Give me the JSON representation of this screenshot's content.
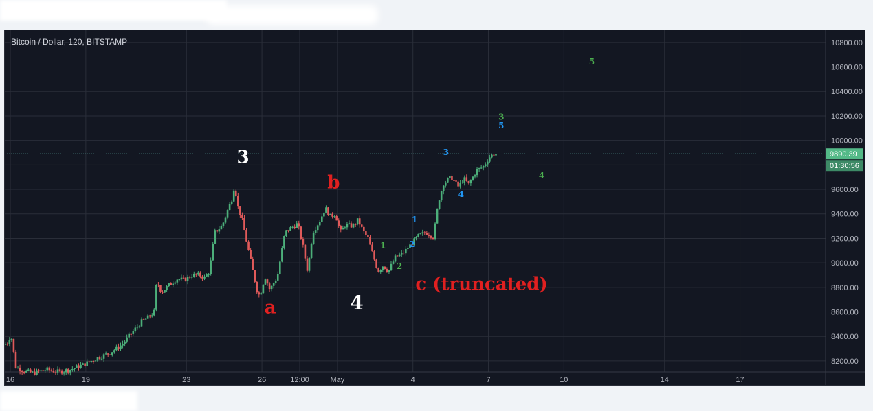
{
  "chart_data": {
    "type": "candlestick",
    "title": "Bitcoin / Dollar, 120, BITSTAMP",
    "y_ticks": [
      "10800.00",
      "10600.00",
      "10400.00",
      "10200.00",
      "10000.00",
      "9800.00",
      "9600.00",
      "9400.00",
      "9200.00",
      "9000.00",
      "8800.00",
      "8600.00",
      "8400.00",
      "8200.00"
    ],
    "y_tick_values": [
      10800,
      10600,
      10400,
      10200,
      10000,
      9800,
      9600,
      9400,
      9200,
      9000,
      8800,
      8600,
      8400,
      8200
    ],
    "ylim": [
      8110,
      10900
    ],
    "x_ticks": [
      "16",
      "19",
      "23",
      "26",
      "12:00",
      "May",
      "4",
      "7",
      "10",
      "14",
      "17"
    ],
    "x_tick_days": [
      16,
      19,
      23,
      26,
      27.5,
      29,
      32,
      35,
      38,
      42,
      45
    ],
    "xlim": [
      15.78,
      48.4
    ],
    "grid": true,
    "current_price": "9890.39",
    "current_price_value": 9890.39,
    "countdown": "01:30:56",
    "colors": {
      "up": "#4caf7a",
      "down": "#e05a5a",
      "background": "#131722",
      "grid": "#2a2e39",
      "price_line": "#5fb3a7"
    },
    "price_path": [
      [
        15.8,
        8330
      ],
      [
        16.0,
        8350
      ],
      [
        16.1,
        8430
      ],
      [
        16.3,
        8150
      ],
      [
        16.6,
        8120
      ],
      [
        17.0,
        8100
      ],
      [
        17.5,
        8130
      ],
      [
        18.0,
        8110
      ],
      [
        18.5,
        8130
      ],
      [
        19.0,
        8170
      ],
      [
        19.5,
        8220
      ],
      [
        20.0,
        8260
      ],
      [
        20.5,
        8330
      ],
      [
        20.8,
        8400
      ],
      [
        21.0,
        8450
      ],
      [
        21.3,
        8520
      ],
      [
        21.6,
        8560
      ],
      [
        21.8,
        8600
      ],
      [
        21.9,
        8850
      ],
      [
        22.1,
        8760
      ],
      [
        22.4,
        8820
      ],
      [
        22.7,
        8870
      ],
      [
        23.0,
        8860
      ],
      [
        23.3,
        8900
      ],
      [
        23.6,
        8900
      ],
      [
        23.8,
        8880
      ],
      [
        24.0,
        8930
      ],
      [
        24.2,
        9250
      ],
      [
        24.5,
        9300
      ],
      [
        24.7,
        9420
      ],
      [
        24.9,
        9530
      ],
      [
        25.0,
        9650
      ],
      [
        25.1,
        9480
      ],
      [
        25.3,
        9350
      ],
      [
        25.5,
        9150
      ],
      [
        25.7,
        8950
      ],
      [
        25.9,
        8760
      ],
      [
        26.0,
        8730
      ],
      [
        26.2,
        8890
      ],
      [
        26.4,
        8780
      ],
      [
        26.7,
        8890
      ],
      [
        27.0,
        9250
      ],
      [
        27.2,
        9280
      ],
      [
        27.5,
        9320
      ],
      [
        27.7,
        9150
      ],
      [
        27.9,
        8930
      ],
      [
        28.1,
        9250
      ],
      [
        28.4,
        9350
      ],
      [
        28.6,
        9450
      ],
      [
        28.8,
        9380
      ],
      [
        29.0,
        9400
      ],
      [
        29.2,
        9250
      ],
      [
        29.4,
        9310
      ],
      [
        29.7,
        9300
      ],
      [
        29.9,
        9350
      ],
      [
        30.1,
        9260
      ],
      [
        30.3,
        9200
      ],
      [
        30.5,
        9060
      ],
      [
        30.7,
        8930
      ],
      [
        30.9,
        8980
      ],
      [
        31.1,
        8930
      ],
      [
        31.4,
        9050
      ],
      [
        31.7,
        9080
      ],
      [
        32.0,
        9150
      ],
      [
        32.3,
        9220
      ],
      [
        32.6,
        9250
      ],
      [
        32.9,
        9210
      ],
      [
        33.1,
        9500
      ],
      [
        33.3,
        9650
      ],
      [
        33.6,
        9700
      ],
      [
        33.9,
        9620
      ],
      [
        34.1,
        9690
      ],
      [
        34.3,
        9640
      ],
      [
        34.6,
        9750
      ],
      [
        34.9,
        9790
      ],
      [
        35.1,
        9860
      ],
      [
        35.3,
        9890
      ]
    ],
    "annotations": [
      {
        "text": "3",
        "day": 25.0,
        "price": 9815,
        "color": "#ffffff",
        "size": 26
      },
      {
        "text": "a",
        "day": 26.1,
        "price": 8590,
        "color": "#e02020",
        "size": 26
      },
      {
        "text": "b",
        "day": 28.6,
        "price": 9610,
        "color": "#e02020",
        "size": 26
      },
      {
        "text": "c (truncated)",
        "day": 32.1,
        "price": 8780,
        "color": "#e02020",
        "size": 26
      },
      {
        "text": "4",
        "day": 29.5,
        "price": 8620,
        "color": "#ffffff",
        "size": 28
      },
      {
        "text": "1",
        "day": 30.7,
        "price": 9120,
        "color": "#4caf50",
        "size": 12
      },
      {
        "text": "2",
        "day": 31.35,
        "price": 8950,
        "color": "#4caf50",
        "size": 12
      },
      {
        "text": "1",
        "day": 31.95,
        "price": 9330,
        "color": "#2196f3",
        "size": 12
      },
      {
        "text": "2",
        "day": 31.85,
        "price": 9130,
        "color": "#2196f3",
        "size": 12
      },
      {
        "text": "3",
        "day": 33.2,
        "price": 9880,
        "color": "#2196f3",
        "size": 12
      },
      {
        "text": "4",
        "day": 33.8,
        "price": 9540,
        "color": "#2196f3",
        "size": 12
      },
      {
        "text": "3",
        "day": 35.4,
        "price": 10170,
        "color": "#4caf50",
        "size": 12
      },
      {
        "text": "5",
        "day": 35.4,
        "price": 10100,
        "color": "#2196f3",
        "size": 12
      },
      {
        "text": "4",
        "day": 37.0,
        "price": 9690,
        "color": "#4caf50",
        "size": 12
      },
      {
        "text": "5",
        "day": 39.0,
        "price": 10620,
        "color": "#4caf50",
        "size": 12
      }
    ]
  }
}
